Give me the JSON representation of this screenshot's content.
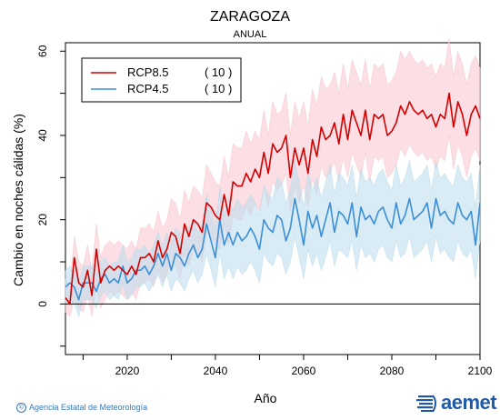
{
  "header": {
    "title": "ZARAGOZA",
    "subtitle": "ANUAL"
  },
  "footer": {
    "credit": "Agencia Estatal de Meteorología",
    "logo": "aemet"
  },
  "chart_data": {
    "type": "line",
    "xlabel": "Año",
    "ylabel": "Cambio en noches cálidas (%)",
    "xlim": [
      2006,
      2100
    ],
    "ylim": [
      -12,
      62
    ],
    "xticks": [
      2020,
      2040,
      2060,
      2080,
      2100
    ],
    "yticks": [
      0,
      20,
      40,
      60
    ],
    "zero_line": true,
    "legend_position": "top-left",
    "years_start": 2006,
    "series": [
      {
        "name": "RCP8.5",
        "count": "( 10 )",
        "color": "#d40000",
        "band_color": "#f7c5ce",
        "values": [
          1.5,
          0,
          11,
          5,
          4,
          8,
          2,
          13,
          5,
          8,
          9,
          8,
          9,
          8,
          7,
          9,
          7,
          11,
          11,
          12,
          10,
          15,
          11,
          13,
          17,
          16,
          12,
          19,
          16,
          20,
          19,
          17,
          24,
          23,
          21,
          20,
          26,
          21,
          29,
          28,
          28,
          31,
          29,
          32,
          30,
          36,
          31,
          38,
          36,
          37,
          40,
          30,
          37,
          33,
          37,
          31,
          39,
          35,
          42,
          39,
          40,
          43,
          38,
          45,
          39,
          46,
          43,
          40,
          46,
          39,
          45,
          44,
          45,
          40,
          41,
          43,
          47,
          45,
          48,
          46,
          45,
          46,
          44,
          45,
          42,
          45,
          44,
          50,
          42,
          48,
          45,
          40,
          45,
          47,
          44
        ],
        "lower": [
          -2,
          -3,
          1,
          -1,
          -2,
          2,
          -3,
          4,
          -1,
          1,
          3,
          2,
          3,
          2,
          1,
          3,
          1,
          5,
          5,
          6,
          4,
          8,
          5,
          7,
          10,
          9,
          6,
          12,
          9,
          13,
          12,
          10,
          17,
          16,
          14,
          13,
          19,
          14,
          21,
          20,
          20,
          23,
          21,
          24,
          22,
          28,
          23,
          29,
          27,
          28,
          31,
          22,
          28,
          24,
          28,
          23,
          30,
          26,
          33,
          30,
          31,
          34,
          29,
          35,
          30,
          36,
          33,
          30,
          36,
          29,
          35,
          34,
          35,
          30,
          31,
          33,
          37,
          35,
          38,
          36,
          35,
          36,
          34,
          35,
          32,
          35,
          34,
          40,
          32,
          38,
          35,
          30,
          35,
          37,
          34
        ],
        "upper": [
          6,
          4,
          16,
          10,
          9,
          14,
          8,
          19,
          11,
          14,
          15,
          14,
          15,
          14,
          13,
          15,
          13,
          18,
          18,
          19,
          17,
          22,
          18,
          20,
          25,
          24,
          20,
          27,
          24,
          28,
          27,
          25,
          33,
          31,
          29,
          28,
          35,
          30,
          38,
          37,
          37,
          41,
          38,
          41,
          39,
          46,
          40,
          48,
          45,
          46,
          50,
          40,
          48,
          44,
          48,
          42,
          51,
          47,
          54,
          51,
          52,
          55,
          50,
          57,
          51,
          58,
          55,
          52,
          58,
          51,
          57,
          56,
          57,
          52,
          53,
          55,
          60,
          58,
          60,
          58,
          57,
          58,
          56,
          57,
          54,
          57,
          56,
          63,
          54,
          60,
          57,
          52,
          57,
          59,
          56
        ]
      },
      {
        "name": "RCP4.5",
        "count": "( 10 )",
        "color": "#3a8fd8",
        "band_color": "#b9dcec",
        "values": [
          4,
          5,
          4,
          1,
          5,
          5,
          5,
          3,
          6,
          7,
          5,
          6,
          5,
          9,
          5,
          6,
          8,
          8,
          9,
          7,
          9,
          12,
          9,
          12,
          8,
          12,
          11,
          9,
          12,
          14,
          11,
          13,
          19,
          15,
          11,
          20,
          14,
          17,
          14,
          17,
          15,
          16,
          18,
          16,
          13,
          20,
          18,
          17,
          21,
          20,
          15,
          18,
          25,
          20,
          14,
          22,
          18,
          21,
          16,
          20,
          24,
          17,
          22,
          21,
          19,
          24,
          16,
          23,
          20,
          21,
          19,
          22,
          23,
          20,
          18,
          24,
          19,
          21,
          25,
          20,
          21,
          22,
          24,
          18,
          25,
          21,
          22,
          20,
          19,
          24,
          21,
          20,
          22,
          14,
          24
        ],
        "lower": [
          0,
          1,
          0,
          -3,
          1,
          1,
          1,
          -1,
          2,
          3,
          1,
          2,
          1,
          5,
          1,
          2,
          4,
          4,
          5,
          3,
          5,
          7,
          4,
          7,
          3,
          6,
          5,
          3,
          6,
          8,
          5,
          7,
          12,
          8,
          4,
          12,
          6,
          9,
          6,
          9,
          7,
          8,
          10,
          8,
          5,
          12,
          10,
          9,
          12,
          11,
          7,
          10,
          16,
          11,
          6,
          13,
          9,
          12,
          8,
          11,
          15,
          9,
          13,
          12,
          11,
          15,
          8,
          14,
          11,
          12,
          10,
          13,
          14,
          11,
          10,
          15,
          11,
          12,
          16,
          11,
          12,
          13,
          15,
          10,
          16,
          12,
          13,
          11,
          10,
          15,
          12,
          11,
          13,
          6,
          15
        ],
        "upper": [
          8,
          9,
          8,
          5,
          9,
          9,
          9,
          7,
          10,
          11,
          9,
          10,
          10,
          14,
          10,
          11,
          13,
          13,
          14,
          12,
          14,
          17,
          14,
          17,
          14,
          18,
          17,
          15,
          18,
          20,
          17,
          19,
          26,
          22,
          18,
          28,
          21,
          25,
          22,
          25,
          23,
          24,
          26,
          24,
          21,
          28,
          26,
          25,
          30,
          29,
          24,
          27,
          34,
          29,
          23,
          31,
          27,
          30,
          25,
          29,
          33,
          26,
          31,
          30,
          28,
          33,
          25,
          32,
          29,
          30,
          28,
          31,
          32,
          29,
          27,
          33,
          28,
          30,
          34,
          29,
          30,
          31,
          33,
          27,
          34,
          30,
          31,
          29,
          28,
          33,
          30,
          29,
          31,
          23,
          33
        ]
      }
    ]
  }
}
